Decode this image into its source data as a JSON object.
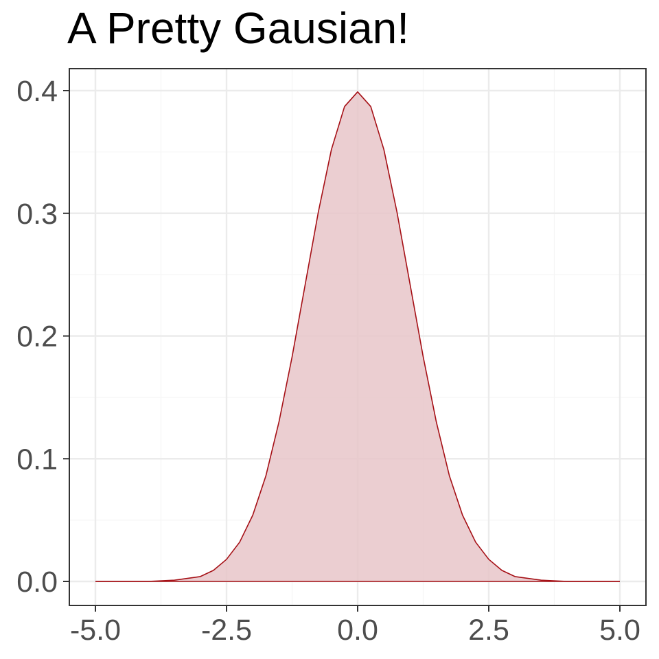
{
  "chart_data": {
    "type": "area",
    "title": "A Pretty Gausian!",
    "xlabel": "",
    "ylabel": "",
    "xlim": [
      -5.0,
      5.0
    ],
    "ylim": [
      0.0,
      0.4
    ],
    "x_ticks": [
      -5.0,
      -2.5,
      0.0,
      2.5,
      5.0
    ],
    "x_tick_labels": [
      "-5.0",
      "-2.5",
      "0.0",
      "2.5",
      "5.0"
    ],
    "y_ticks": [
      0.0,
      0.1,
      0.2,
      0.3,
      0.4
    ],
    "y_tick_labels": [
      "0.0",
      "0.1",
      "0.2",
      "0.3",
      "0.4"
    ],
    "grid": true,
    "legend": "none",
    "series": [
      {
        "x": [
          -5.0,
          -4.5,
          -4.0,
          -3.5,
          -3.0,
          -2.75,
          -2.5,
          -2.25,
          -2.0,
          -1.75,
          -1.5,
          -1.25,
          -1.0,
          -0.75,
          -0.5,
          -0.25,
          0.0,
          0.25,
          0.5,
          0.75,
          1.0,
          1.25,
          1.5,
          1.75,
          2.0,
          2.25,
          2.5,
          2.75,
          3.0,
          3.5,
          4.0,
          4.5,
          5.0
        ],
        "y": [
          0.0,
          0.0,
          0.0,
          0.001,
          0.004,
          0.009,
          0.018,
          0.032,
          0.054,
          0.086,
          0.13,
          0.183,
          0.242,
          0.301,
          0.352,
          0.387,
          0.399,
          0.387,
          0.352,
          0.301,
          0.242,
          0.183,
          0.13,
          0.086,
          0.054,
          0.032,
          0.018,
          0.009,
          0.004,
          0.001,
          0.0,
          0.0,
          0.0
        ]
      }
    ],
    "colors": {
      "line": "#a50f15",
      "fill": "#e8c6c9",
      "grid_major": "#ebebeb",
      "grid_minor": "#f5f5f5",
      "panel_border": "#333333",
      "tick_label": "#4d4d4d"
    }
  }
}
